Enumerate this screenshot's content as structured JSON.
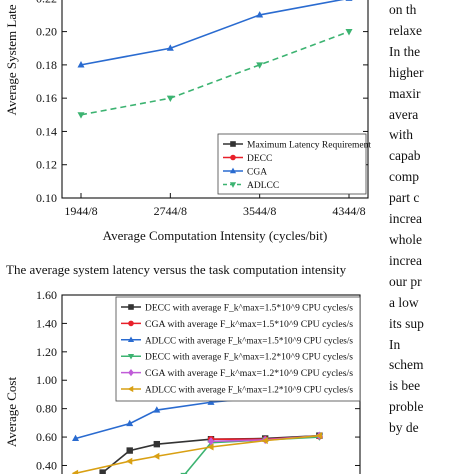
{
  "caption": "The average system latency versus the task computation intensity",
  "side_text": [
    "on th",
    "relaxe",
    "In the",
    "higher",
    "maxir",
    "avera",
    "with",
    "capab",
    "comp",
    "part c",
    "increa",
    "whole",
    "increa",
    "our pr",
    "a low",
    "its sup",
    "In",
    "schem",
    "is bee",
    "proble",
    "by de"
  ],
  "chart_data": [
    {
      "type": "line",
      "title": "",
      "xlabel": "Average Computation Intensity (cycles/bit)",
      "ylabel": "Average System Late",
      "categories": [
        "1944/8",
        "2744/8",
        "3544/8",
        "4344/8"
      ],
      "yticks": [
        "0.10",
        "0.12",
        "0.14",
        "0.16",
        "0.18",
        "0.20",
        "0.22"
      ],
      "ylim": [
        0.1,
        0.225
      ],
      "grid": false,
      "legend_position": "bottom-right",
      "series": [
        {
          "name": "Maximum Latency Requirement",
          "color": "#333333",
          "marker": "square",
          "values": [
            null,
            null,
            null,
            null
          ]
        },
        {
          "name": "DECC",
          "color": "#e8202a",
          "marker": "circle",
          "values": [
            null,
            null,
            null,
            null
          ]
        },
        {
          "name": "CGA",
          "color": "#2a6bd0",
          "marker": "triangle-up",
          "values": [
            0.18,
            0.19,
            0.21,
            0.22
          ]
        },
        {
          "name": "ADLCC",
          "color": "#3cb371",
          "marker": "triangle-down",
          "dashed": true,
          "values": [
            0.15,
            0.16,
            0.18,
            0.2
          ]
        }
      ]
    },
    {
      "type": "line",
      "title": "",
      "xlabel": "",
      "ylabel": "Average Cost",
      "x": [
        1,
        2,
        3,
        4,
        5,
        6,
        7,
        8,
        9,
        10,
        11
      ],
      "yticks": [
        "0.40",
        "0.60",
        "0.80",
        "1.00",
        "1.20",
        "1.40",
        "1.60"
      ],
      "ylim": [
        0.34,
        1.6
      ],
      "xlim": [
        0.5,
        11.5
      ],
      "grid": false,
      "legend_position": "top-left",
      "series": [
        {
          "name": "DECC with average F_k^max=1.5*10^9 CPU cycles/s",
          "color": "#333333",
          "marker": "square",
          "values": [
            null,
            0.35,
            0.505,
            0.55,
            null,
            0.585,
            null,
            0.59,
            null,
            0.61,
            null
          ]
        },
        {
          "name": "CGA with average F_k^max=1.5*10^9 CPU cycles/s",
          "color": "#e8202a",
          "marker": "circle",
          "values": [
            null,
            null,
            null,
            null,
            null,
            0.585,
            null,
            0.585,
            null,
            0.605,
            null
          ]
        },
        {
          "name": "ADLCC with average F_k^max=1.5*10^9 CPU cycles/s",
          "color": "#2a6bd0",
          "marker": "triangle-up",
          "values": [
            0.59,
            null,
            0.695,
            0.79,
            null,
            0.845,
            null,
            0.88,
            null,
            0.915,
            null
          ]
        },
        {
          "name": "DECC with average F_k^max=1.2*10^9 CPU cycles/s",
          "color": "#3cb371",
          "marker": "triangle-down",
          "values": [
            null,
            null,
            null,
            null,
            0.33,
            0.56,
            null,
            0.58,
            null,
            0.6,
            null
          ]
        },
        {
          "name": "CGA with average F_k^max=1.2*10^9 CPU cycles/s",
          "color": "#c05cd8",
          "marker": "diamond",
          "values": [
            null,
            null,
            null,
            null,
            null,
            0.57,
            null,
            0.58,
            null,
            0.61,
            null
          ]
        },
        {
          "name": "ADLCC with average F_k^max=1.2*10^9 CPU cycles/s",
          "color": "#d9a013",
          "marker": "triangle-left",
          "values": [
            0.345,
            null,
            0.43,
            0.465,
            null,
            0.53,
            null,
            0.575,
            null,
            0.61,
            null
          ]
        }
      ]
    }
  ]
}
